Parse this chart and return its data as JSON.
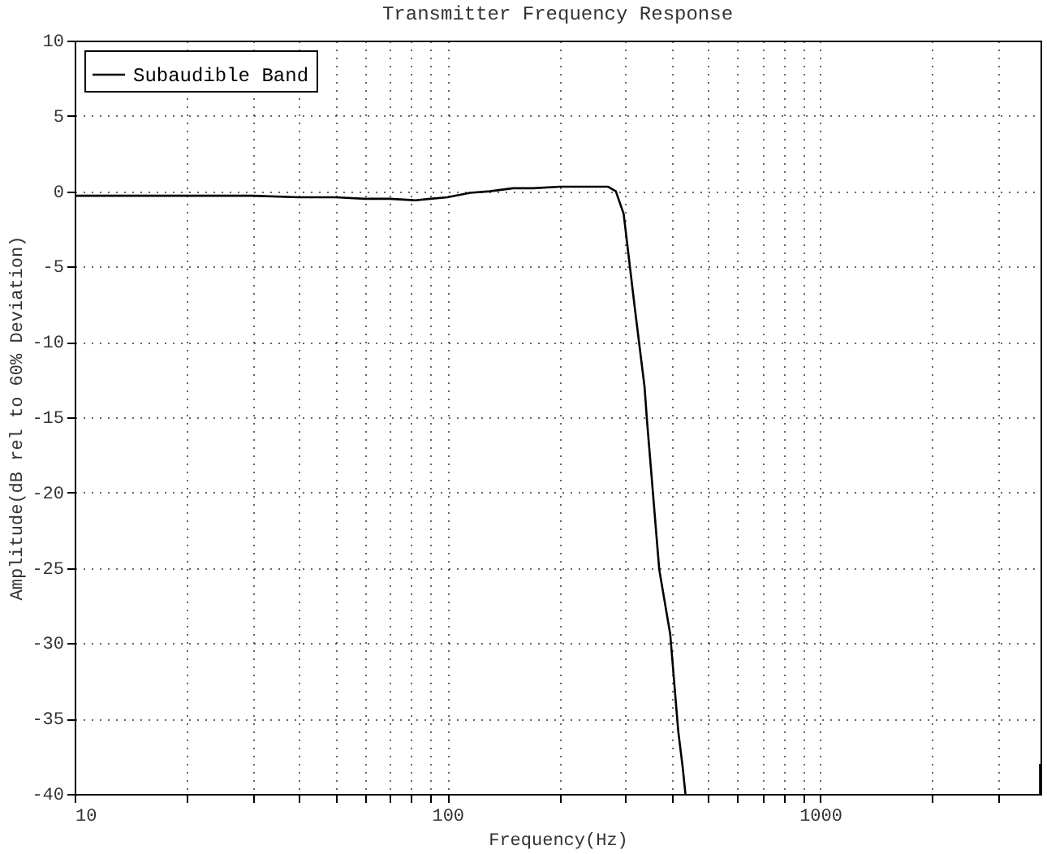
{
  "chart_data": {
    "type": "line",
    "title": "Transmitter Frequency Response",
    "xlabel": "Frequency(Hz)",
    "ylabel": "Amplitude(dB rel to 60% Deviation)",
    "log": "x",
    "xlim": [
      10,
      3900
    ],
    "ylim": [
      -40,
      10
    ],
    "xticks": [
      10,
      {
        "value": 20,
        "label": null
      },
      {
        "value": 30,
        "label": null
      },
      {
        "value": 40,
        "label": null
      },
      {
        "value": 50,
        "label": null
      },
      {
        "value": 60,
        "label": null
      },
      {
        "value": 70,
        "label": null
      },
      {
        "value": 80,
        "label": null
      },
      {
        "value": 90,
        "label": null
      },
      100,
      {
        "value": 200,
        "label": null
      },
      {
        "value": 300,
        "label": null
      },
      {
        "value": 400,
        "label": null
      },
      {
        "value": 500,
        "label": null
      },
      {
        "value": 600,
        "label": null
      },
      {
        "value": 700,
        "label": null
      },
      {
        "value": 800,
        "label": null
      },
      {
        "value": 900,
        "label": null
      },
      1000,
      {
        "value": 2000,
        "label": null
      },
      {
        "value": 3000,
        "label": null
      }
    ],
    "yticks": [
      -40,
      -35,
      -30,
      -25,
      -20,
      -15,
      -10,
      -5,
      0,
      5,
      10
    ],
    "grid": true,
    "legend": "top left",
    "line_style": "solid",
    "series": [
      {
        "name": "Subaudible Band",
        "color": "#000000",
        "x": [
          10,
          20,
          30,
          40,
          50,
          60,
          70,
          82,
          90,
          100,
          115,
          130,
          150,
          170,
          200,
          240,
          270,
          283,
          297,
          318,
          338,
          343,
          370,
          396,
          416,
          428,
          435,
          1000,
          3890,
          3890
        ],
        "values": [
          -0.3,
          -0.3,
          -0.3,
          -0.4,
          -0.4,
          -0.5,
          -0.5,
          -0.6,
          -0.5,
          -0.4,
          -0.1,
          0,
          0.2,
          0.2,
          0.3,
          0.3,
          0.3,
          0,
          -1.5,
          -7.7,
          -13,
          -15.2,
          -25.1,
          -29.4,
          -35.8,
          -38.3,
          -40,
          null,
          -40,
          -38
        ]
      }
    ]
  }
}
